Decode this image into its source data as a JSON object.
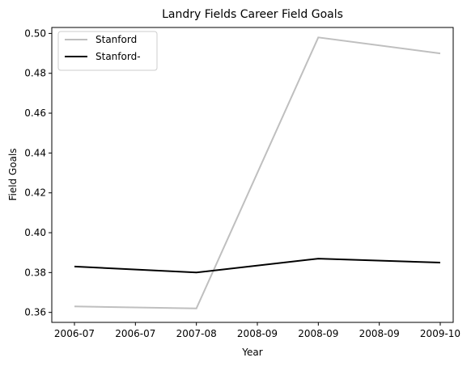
{
  "chart_data": {
    "type": "line",
    "title": "Landry Fields Career Field Goals",
    "xlabel": "Year",
    "ylabel": "Field Goals",
    "x_tick_labels": [
      "2006-07",
      "2006-07",
      "2007-08",
      "2008-09",
      "2008-09",
      "2008-09",
      "2009-10"
    ],
    "y_ticks": [
      0.36,
      0.38,
      0.4,
      0.42,
      0.44,
      0.46,
      0.48,
      0.5
    ],
    "y_tick_labels": [
      "0.36",
      "0.38",
      "0.40",
      "0.42",
      "0.44",
      "0.46",
      "0.48",
      "0.50"
    ],
    "ylim": [
      0.355,
      0.503
    ],
    "grid": false,
    "legend_position": "top-left",
    "series": [
      {
        "name": "Stanford",
        "color": "#bfbfbf",
        "points": [
          {
            "x": "2006-07",
            "y": 0.363
          },
          {
            "x": "2007-08",
            "y": 0.362
          },
          {
            "x": "2008-09",
            "y": 0.498
          },
          {
            "x": "2009-10",
            "y": 0.49
          }
        ]
      },
      {
        "name": "Stanford-",
        "color": "#000000",
        "points": [
          {
            "x": "2006-07",
            "y": 0.383
          },
          {
            "x": "2007-08",
            "y": 0.38
          },
          {
            "x": "2008-09",
            "y": 0.387
          },
          {
            "x": "2009-10",
            "y": 0.385
          }
        ]
      }
    ]
  }
}
